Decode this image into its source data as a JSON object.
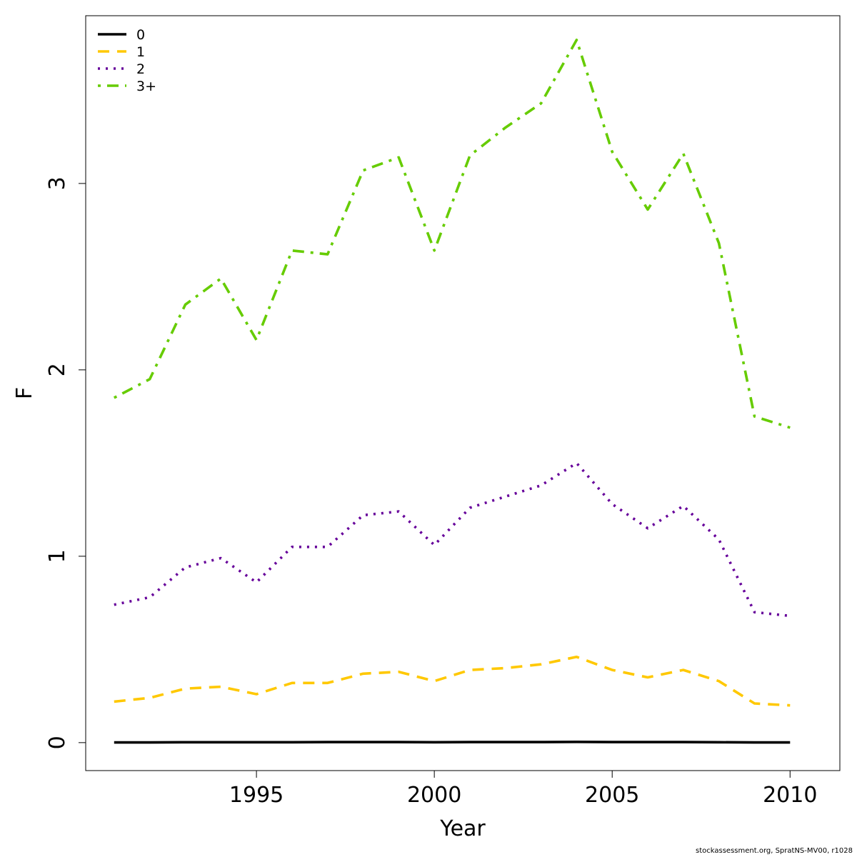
{
  "chart_data": {
    "type": "line",
    "title": "",
    "xlabel": "Year",
    "ylabel": "F",
    "xlim": [
      1990.2,
      2011.4
    ],
    "ylim": [
      -0.15,
      3.9
    ],
    "xticks": [
      1995,
      2000,
      2005,
      2010
    ],
    "yticks": [
      0,
      1,
      2,
      3
    ],
    "grid": false,
    "legend_position": "top-left",
    "x": [
      1991,
      1992,
      1993,
      1994,
      1995,
      1996,
      1997,
      1998,
      1999,
      2000,
      2001,
      2002,
      2003,
      2004,
      2005,
      2006,
      2007,
      2008,
      2009,
      2010
    ],
    "series": [
      {
        "name": "0",
        "color": "#000000",
        "dash": "solid",
        "values": [
          0.001,
          0.001,
          0.002,
          0.002,
          0.002,
          0.002,
          0.003,
          0.003,
          0.003,
          0.002,
          0.003,
          0.003,
          0.003,
          0.004,
          0.003,
          0.003,
          0.003,
          0.002,
          0.001,
          0.001
        ]
      },
      {
        "name": "1",
        "color": "#FFC800",
        "dash": "dashed",
        "values": [
          0.22,
          0.24,
          0.29,
          0.3,
          0.26,
          0.32,
          0.32,
          0.37,
          0.38,
          0.33,
          0.39,
          0.4,
          0.42,
          0.46,
          0.39,
          0.35,
          0.39,
          0.33,
          0.21,
          0.2
        ]
      },
      {
        "name": "2",
        "color": "#66009A",
        "dash": "dotted",
        "values": [
          0.74,
          0.78,
          0.94,
          0.99,
          0.86,
          1.05,
          1.05,
          1.22,
          1.24,
          1.06,
          1.26,
          1.32,
          1.38,
          1.5,
          1.28,
          1.15,
          1.27,
          1.09,
          0.7,
          0.68
        ]
      },
      {
        "name": "3+",
        "color": "#66CC00",
        "dash": "dashdot",
        "values": [
          1.85,
          1.95,
          2.35,
          2.49,
          2.16,
          2.64,
          2.62,
          3.07,
          3.14,
          2.64,
          3.15,
          3.3,
          3.43,
          3.77,
          3.17,
          2.86,
          3.16,
          2.68,
          1.75,
          1.69
        ]
      }
    ]
  },
  "credit": "stockassessment.org, SpratNS-MV00, r1028"
}
